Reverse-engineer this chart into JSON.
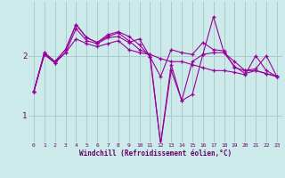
{
  "xlabel": "Windchill (Refroidissement éolien,°C)",
  "background_color": "#cceaea",
  "grid_color": "#aacccc",
  "line_color": "#990099",
  "xlim_min": -0.5,
  "xlim_max": 23.5,
  "ylim_min": 0.55,
  "ylim_max": 2.9,
  "yticks": [
    1,
    2
  ],
  "xticks": [
    0,
    1,
    2,
    3,
    4,
    5,
    6,
    7,
    8,
    9,
    10,
    11,
    12,
    13,
    14,
    15,
    16,
    17,
    18,
    19,
    20,
    21,
    22,
    23
  ],
  "series": [
    [
      1.4,
      2.02,
      1.88,
      2.05,
      2.28,
      2.2,
      2.15,
      2.2,
      2.25,
      2.1,
      2.05,
      2.02,
      1.95,
      1.9,
      1.9,
      1.85,
      1.8,
      1.75,
      1.75,
      1.72,
      1.68,
      2.0,
      1.75,
      1.65
    ],
    [
      1.4,
      2.02,
      1.88,
      2.05,
      2.45,
      2.25,
      2.2,
      2.3,
      2.32,
      2.22,
      2.28,
      1.98,
      1.65,
      2.1,
      2.05,
      2.02,
      2.22,
      2.1,
      2.08,
      1.8,
      1.75,
      1.75,
      1.7,
      1.65
    ],
    [
      1.4,
      2.05,
      1.9,
      2.1,
      2.52,
      2.3,
      2.22,
      2.35,
      2.4,
      2.32,
      2.18,
      1.98,
      0.52,
      1.75,
      1.25,
      1.9,
      2.02,
      2.65,
      2.05,
      1.9,
      1.75,
      1.78,
      2.0,
      1.65
    ],
    [
      1.4,
      2.05,
      1.9,
      2.1,
      2.52,
      2.3,
      2.22,
      2.32,
      2.38,
      2.25,
      2.1,
      2.02,
      0.52,
      1.85,
      1.25,
      1.35,
      2.02,
      2.05,
      2.05,
      1.82,
      1.7,
      1.75,
      1.7,
      1.65
    ]
  ]
}
